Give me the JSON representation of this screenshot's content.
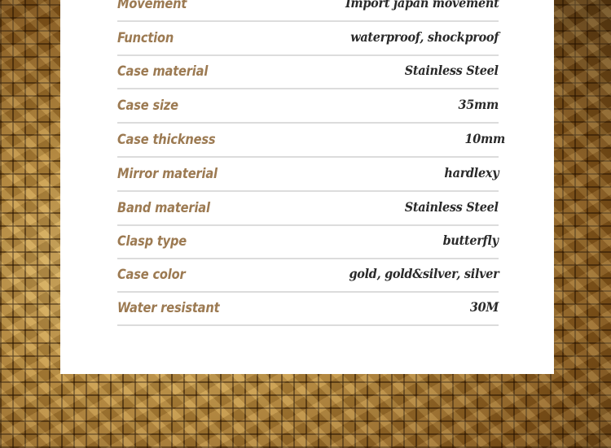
{
  "specs": [
    {
      "label": "Movement",
      "value": "Import japan movement"
    },
    {
      "label": "Function",
      "value": "waterproof, shockproof"
    },
    {
      "label": "Case material",
      "value": "Stainless Steel"
    },
    {
      "label": "Case size",
      "value": "35mm"
    },
    {
      "label": "Case thickness",
      "value": "10mm"
    },
    {
      "label": "Mirror material",
      "value": "hardlexy"
    },
    {
      "label": "Band material",
      "value": "Stainless Steel"
    },
    {
      "label": "Clasp type",
      "value": "butterfly"
    },
    {
      "label": "Case color",
      "value": "gold, gold&silver, silver"
    },
    {
      "label": "Water resistant",
      "value": "30M"
    }
  ],
  "colors": {
    "label": "#9c7a52",
    "value": "#2a2a2a",
    "background": "#c0903f"
  }
}
